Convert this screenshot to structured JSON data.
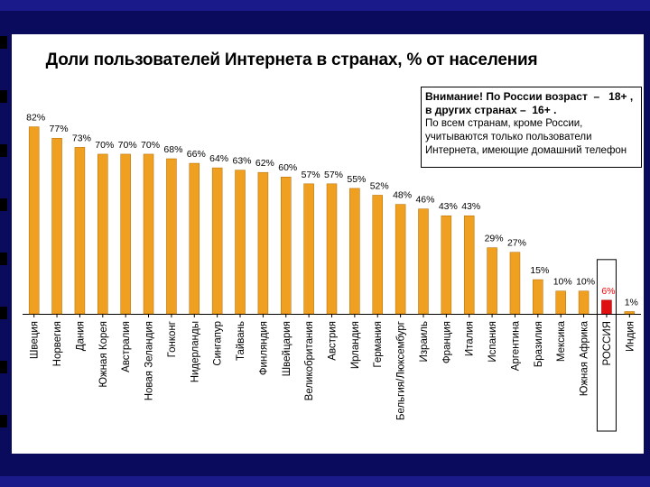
{
  "chart_data": {
    "type": "bar",
    "title": "Доли пользователей Интернета в странах, % от населения",
    "categories": [
      "Швеция",
      "Норвегия",
      "Дания",
      "Южная Корея",
      "Австралия",
      "Новая Зеландия",
      "Гонконг",
      "Нидерланды",
      "Сингапур",
      "Тайвань",
      "Финляндия",
      "Швейцария",
      "Великобритания",
      "Австрия",
      "Ирландия",
      "Германия",
      "Бельгия/Люксембург",
      "Израиль",
      "Франция",
      "Италия",
      "Испания",
      "Аргентина",
      "Бразилия",
      "Мексика",
      "Южная Африка",
      "РОССИЯ",
      "Индия"
    ],
    "values": [
      82,
      77,
      73,
      70,
      70,
      70,
      68,
      66,
      64,
      63,
      62,
      60,
      57,
      57,
      55,
      52,
      48,
      46,
      43,
      43,
      29,
      27,
      15,
      10,
      10,
      6,
      1
    ],
    "value_labels": [
      "82%",
      "77%",
      "73%",
      "70%",
      "70%",
      "70%",
      "68%",
      "66%",
      "64%",
      "63%",
      "62%",
      "60%",
      "57%",
      "57%",
      "55%",
      "52%",
      "48%",
      "46%",
      "43%",
      "43%",
      "29%",
      "27%",
      "15%",
      "10%",
      "10%",
      "6%",
      "1%"
    ],
    "highlight_category": "РОССИЯ",
    "ylim": [
      0,
      85
    ],
    "xlabel": "",
    "ylabel": "",
    "grid": false,
    "colors": {
      "bar": "#f0a020",
      "bar_stroke": "#b06a00",
      "highlight": "#e01010",
      "highlight_label": "#ff0000"
    }
  },
  "note": {
    "line1": "Внимание! По России возраст  –   18+ ,",
    "line2": "в других странах –  16+ .",
    "line3": "По всем странам, кроме России, учитываются только пользователи Интернета, имеющие домашний телефон"
  }
}
